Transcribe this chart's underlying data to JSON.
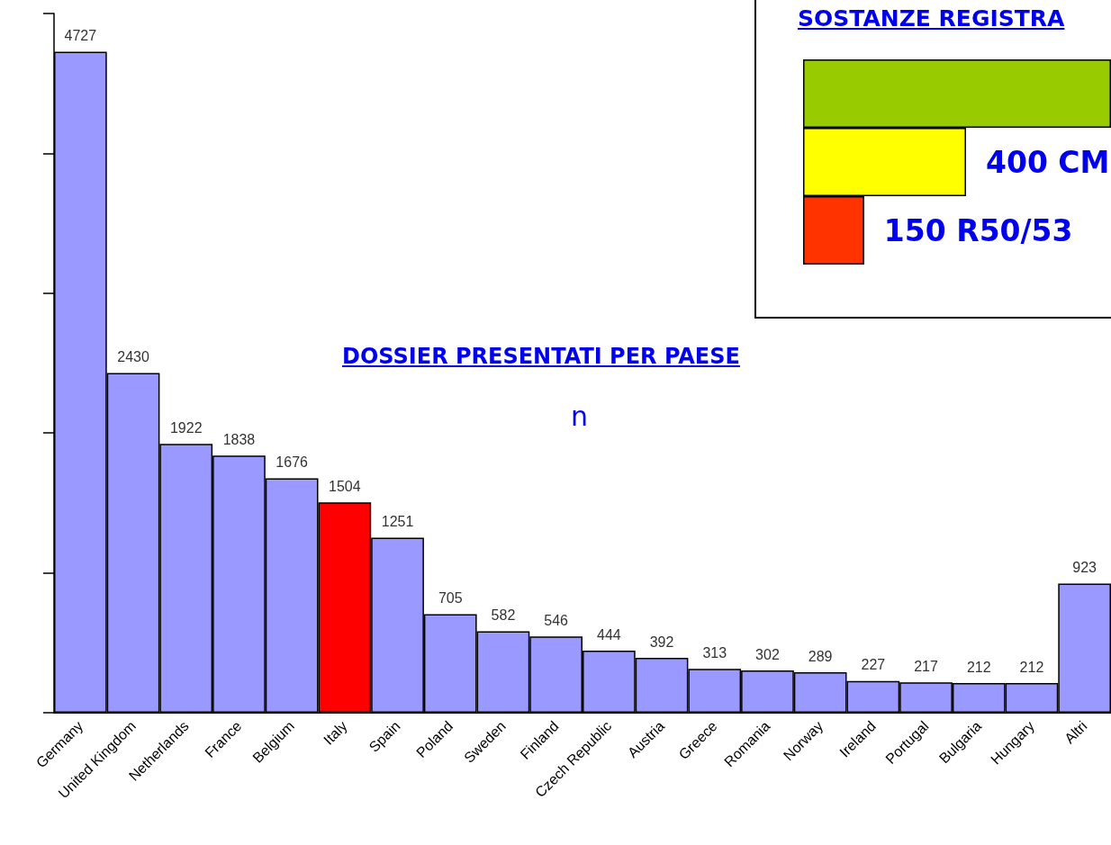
{
  "chart_data": [
    {
      "type": "bar",
      "title": "DOSSIER PRESENTATI PER PAESE",
      "subtitle": "n",
      "categories": [
        "Germany",
        "United Kingdom",
        "Netherlands",
        "France",
        "Belgium",
        "Italy",
        "Spain",
        "Poland",
        "Sweden",
        "Finland",
        "Czech Republic",
        "Austria",
        "Greece",
        "Romania",
        "Norway",
        "Ireland",
        "Portugal",
        "Bulgaria",
        "Hungary",
        "Altri"
      ],
      "values": [
        4727,
        2430,
        1922,
        1838,
        1676,
        1504,
        1251,
        705,
        582,
        546,
        444,
        392,
        313,
        302,
        289,
        227,
        217,
        212,
        212,
        923
      ],
      "colors": [
        "#9999ff",
        "#9999ff",
        "#9999ff",
        "#9999ff",
        "#9999ff",
        "#ff0000",
        "#9999ff",
        "#9999ff",
        "#9999ff",
        "#9999ff",
        "#9999ff",
        "#9999ff",
        "#9999ff",
        "#9999ff",
        "#9999ff",
        "#9999ff",
        "#9999ff",
        "#9999ff",
        "#9999ff",
        "#9999ff"
      ],
      "tick_labels": "x",
      "data_labels": true
    },
    {
      "type": "bar",
      "title": "SOSTANZE REGISTRA",
      "orientation": "horizontal",
      "categories": [
        null,
        null,
        null
      ],
      "values": [
        756,
        400,
        150
      ],
      "value_labels": [
        null,
        "400 CM",
        "150 R50/53"
      ],
      "colors": [
        "#99cc00",
        "#ffff00",
        "#ff3300"
      ],
      "tick_labels": false
    }
  ]
}
